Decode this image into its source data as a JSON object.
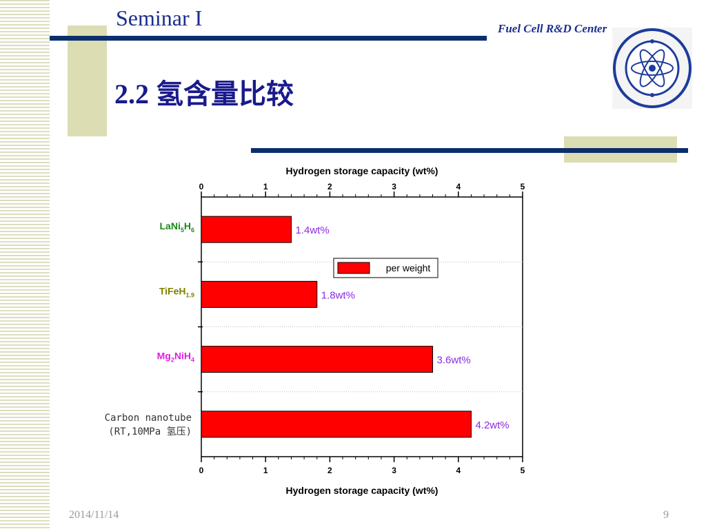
{
  "header": {
    "title": "Seminar I",
    "center_name": "Fuel Cell R&D Center",
    "heading": "2.2 氢含量比较"
  },
  "colors": {
    "navy": "#0b2f6b",
    "tan": "#ddddb4",
    "bar_fill": "#ff0000",
    "value_label": "#8a2be2"
  },
  "chart_data": {
    "type": "bar",
    "orientation": "horizontal",
    "title": "Hydrogen storage capacity (wt%)",
    "xlabel": "Hydrogen storage capacity (wt%)",
    "xlim": [
      0,
      5
    ],
    "xticks": [
      "0",
      "1",
      "2",
      "3",
      "4",
      "5"
    ],
    "categories": [
      {
        "main": "LaNi",
        "sub1": "5",
        "mid": "H",
        "sub2": "6",
        "color": "#1a8a1a"
      },
      {
        "main": "TiFeH",
        "sub1": "1.9",
        "mid": "",
        "sub2": "",
        "color": "#808000"
      },
      {
        "main": "Mg",
        "sub1": "2",
        "mid": "NiH",
        "sub2": "4",
        "color": "#e020e0"
      },
      {
        "line1": "Carbon nanotube",
        "line2": "(RT,10MPa 氢压)",
        "color": "#333333"
      }
    ],
    "series": [
      {
        "name": "per weight",
        "values": [
          1.4,
          1.8,
          3.6,
          4.2
        ]
      }
    ],
    "data_labels": [
      "1.4wt%",
      "1.8wt%",
      "3.6wt%",
      "4.2wt%"
    ],
    "legend": "per weight",
    "legend_position": "upper-right"
  },
  "footer": {
    "date": "2014/11/14",
    "page": "9"
  }
}
